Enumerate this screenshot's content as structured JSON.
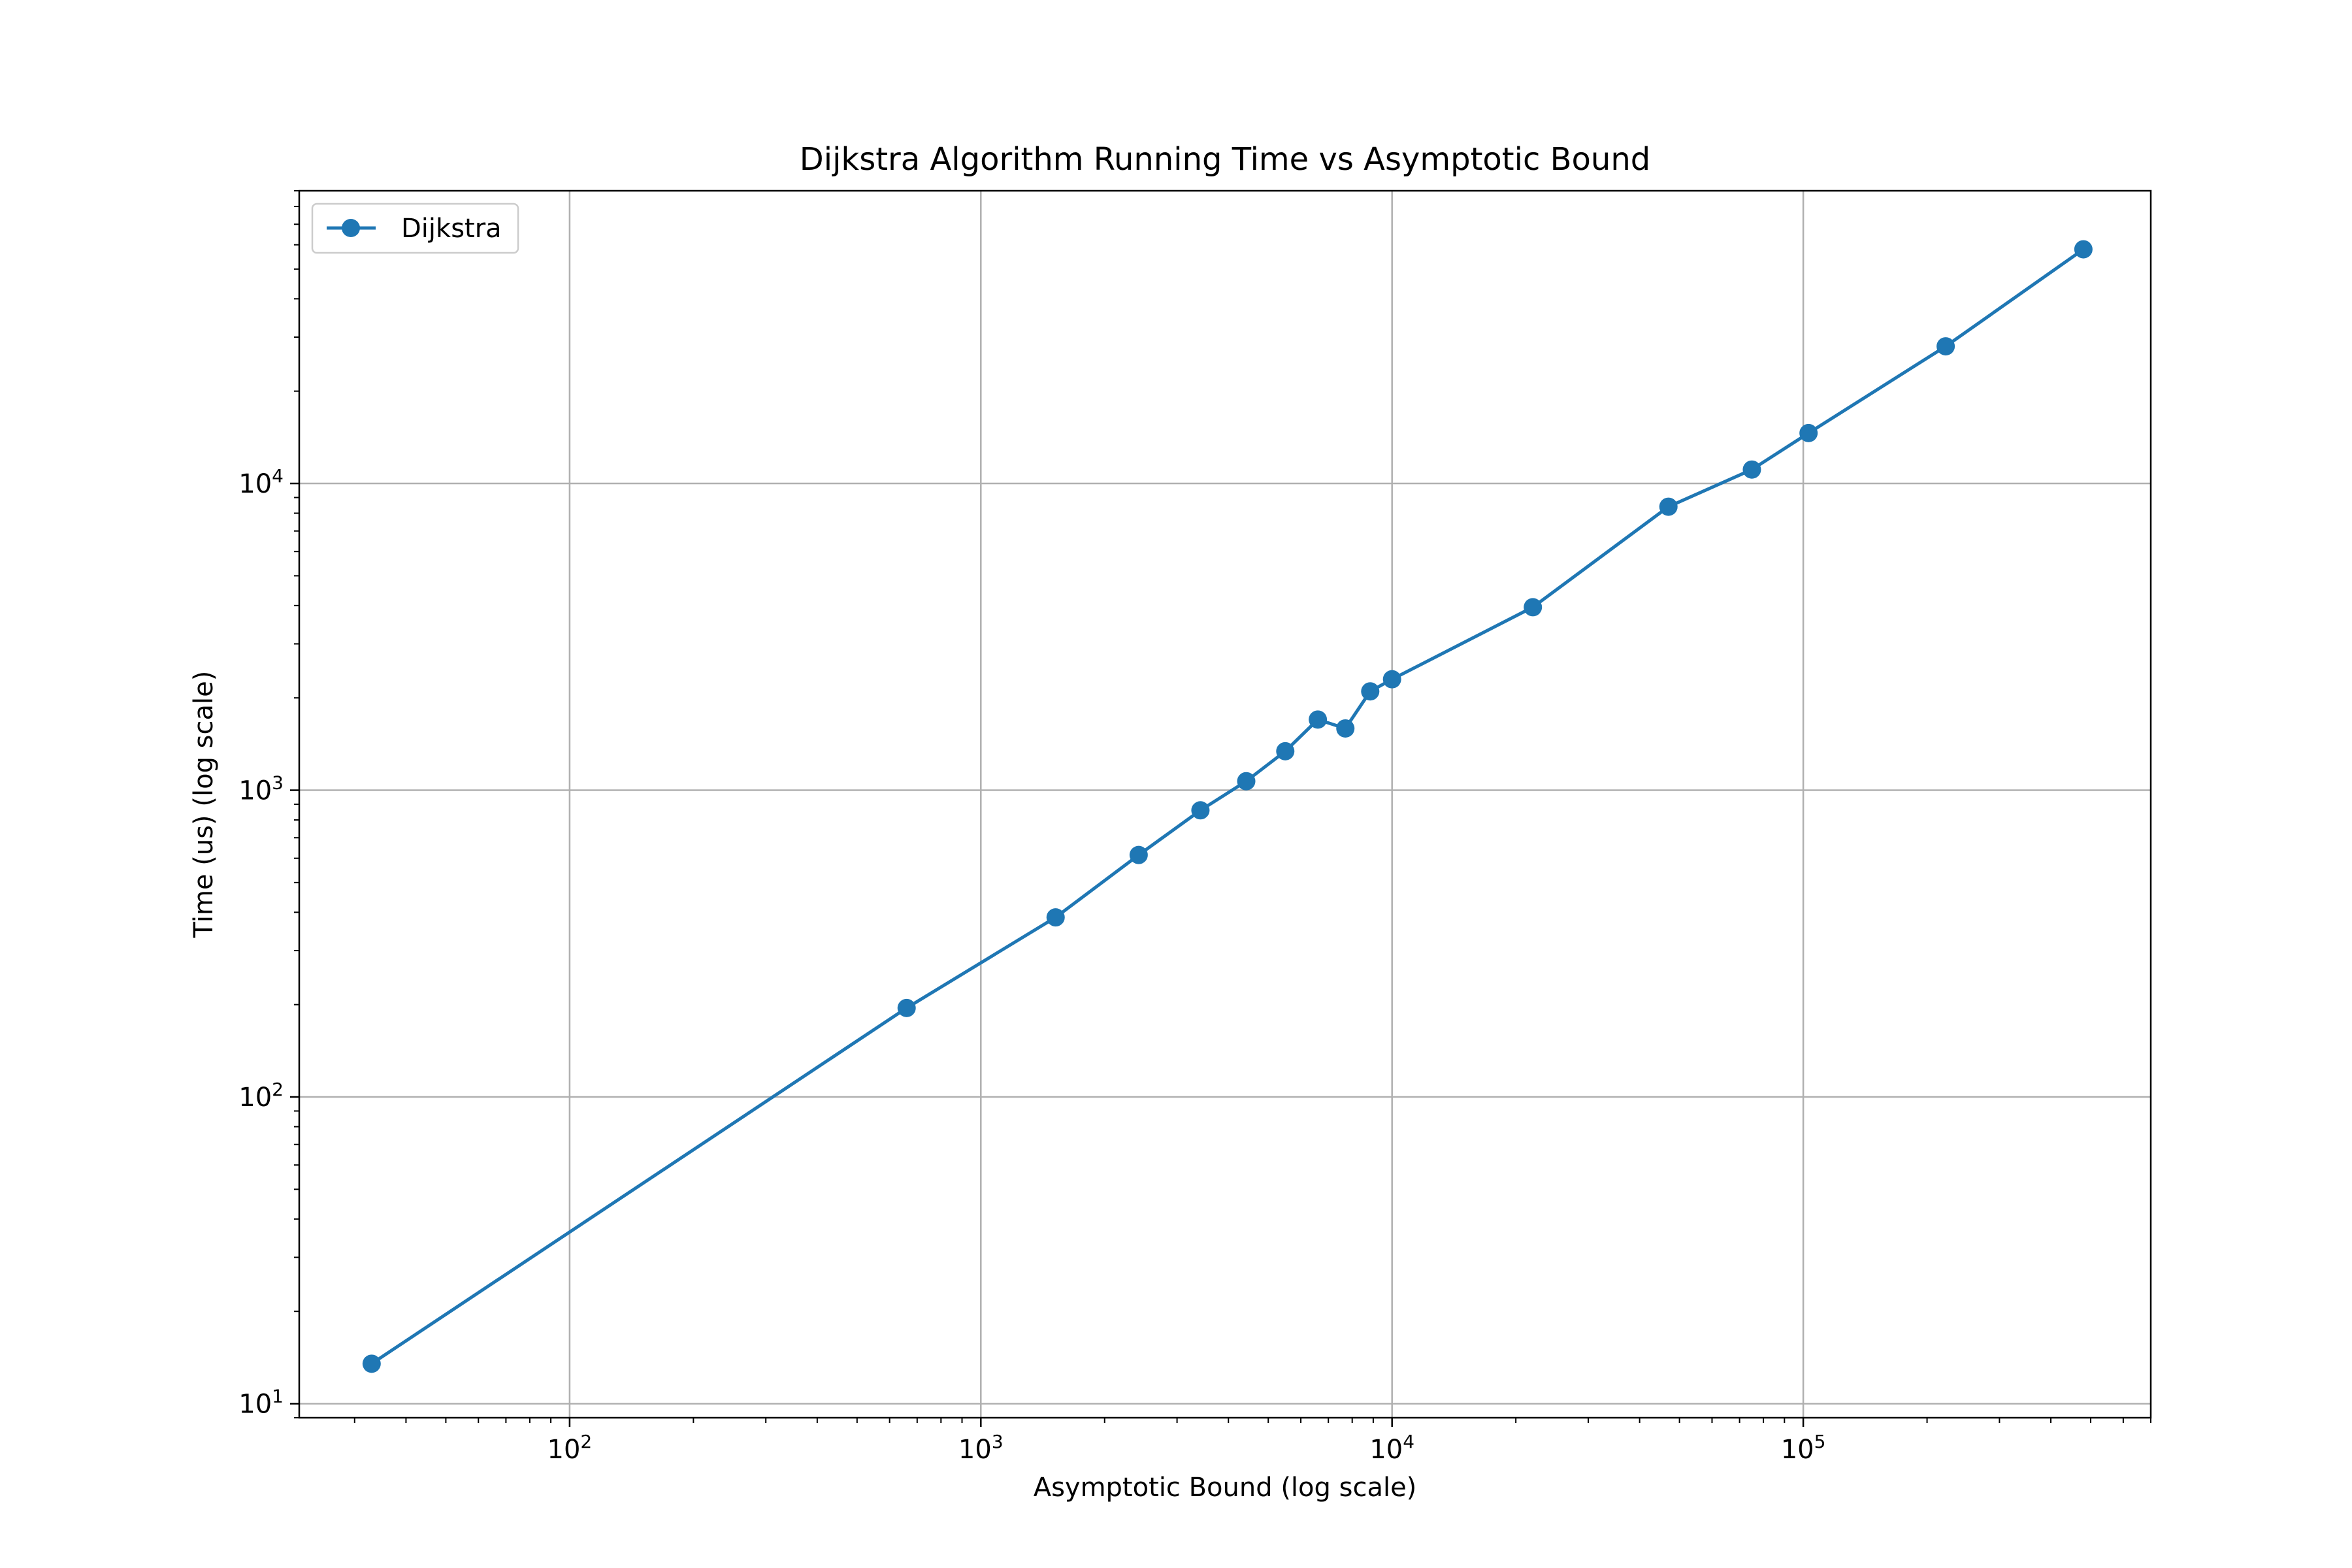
{
  "chart_data": {
    "type": "line",
    "title": "Dijkstra Algorithm Running Time vs Asymptotic Bound",
    "xlabel": "Asymptotic Bound (log scale)",
    "ylabel": "Time (us) (log scale)",
    "xscale": "log",
    "yscale": "log",
    "xlim": [
      22,
      700000
    ],
    "ylim": [
      9,
      90000
    ],
    "grid": true,
    "legend": "top-left",
    "x_ticks": [
      {
        "value": 100,
        "base": "10",
        "exp": "2"
      },
      {
        "value": 1000,
        "base": "10",
        "exp": "3"
      },
      {
        "value": 10000,
        "base": "10",
        "exp": "4"
      },
      {
        "value": 100000,
        "base": "10",
        "exp": "5"
      }
    ],
    "y_ticks": [
      {
        "value": 10,
        "base": "10",
        "exp": "1"
      },
      {
        "value": 100,
        "base": "10",
        "exp": "2"
      },
      {
        "value": 1000,
        "base": "10",
        "exp": "3"
      },
      {
        "value": 10000,
        "base": "10",
        "exp": "4"
      }
    ],
    "series": [
      {
        "name": "Dijkstra",
        "color": "#1f77b4",
        "marker": "circle",
        "points": [
          [
            33,
            13.5
          ],
          [
            660,
            195
          ],
          [
            1520,
            385
          ],
          [
            2420,
            615
          ],
          [
            3420,
            860
          ],
          [
            4420,
            1070
          ],
          [
            5500,
            1340
          ],
          [
            6600,
            1700
          ],
          [
            7700,
            1590
          ],
          [
            8850,
            2100
          ],
          [
            10000,
            2300
          ],
          [
            22000,
            3950
          ],
          [
            47000,
            8400
          ],
          [
            75000,
            11100
          ],
          [
            103000,
            14600
          ],
          [
            222000,
            28000
          ],
          [
            480000,
            58000
          ]
        ]
      }
    ]
  }
}
